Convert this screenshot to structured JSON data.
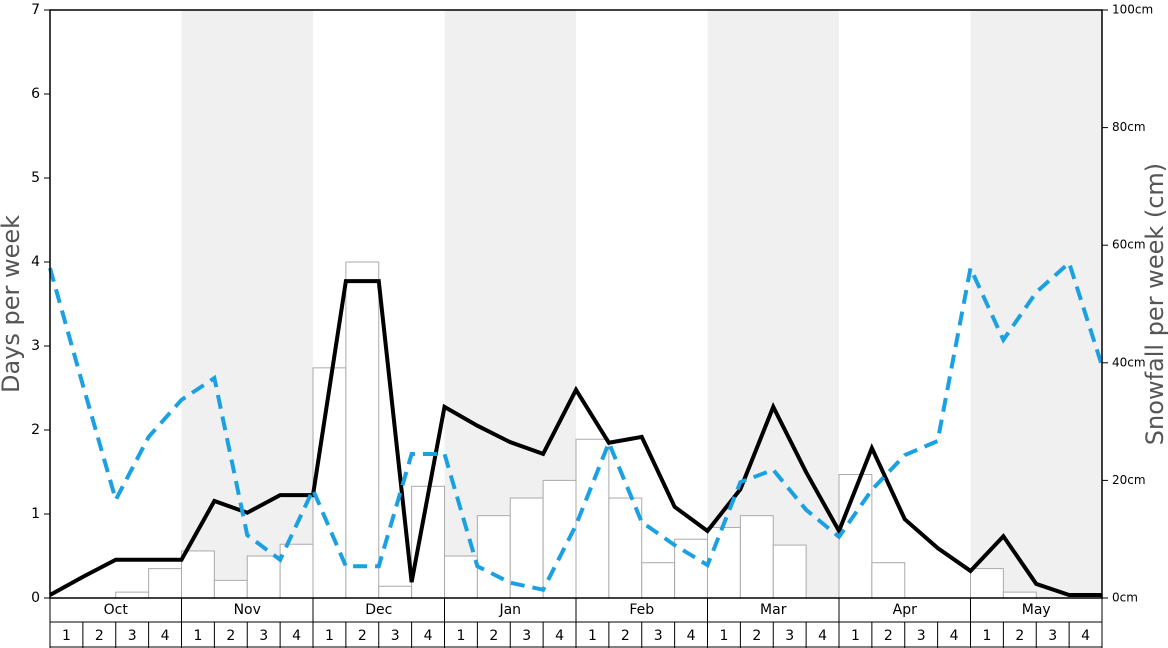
{
  "chart_data": {
    "type": "bar",
    "ylabel": "Days per week",
    "y2label": "Snowfall per week (cm)",
    "months": [
      "Oct",
      "Nov",
      "Dec",
      "Jan",
      "Feb",
      "Mar",
      "Apr",
      "May"
    ],
    "weeks": [
      "1",
      "2",
      "3",
      "4"
    ],
    "shaded_months": [
      false,
      true,
      false,
      true,
      false,
      true,
      false,
      true
    ],
    "shade_color": "#f0f0f0",
    "bar_color": "#ffffff",
    "bar_edge": "#aaaaaa",
    "values": [
      0,
      0,
      0.07,
      0.35,
      0.56,
      0.21,
      0.5,
      0.64,
      2.74,
      4.0,
      0.14,
      1.33,
      0.5,
      0.98,
      1.19,
      1.4,
      1.89,
      1.19,
      0.42,
      0.7,
      0.84,
      0.98,
      0.63,
      0,
      1.47,
      0.42,
      0,
      0,
      0.35,
      0.07,
      0,
      0
    ],
    "ylim": [
      0,
      7
    ],
    "yticks": [
      0,
      1,
      2,
      3,
      4,
      5,
      6,
      7
    ],
    "y2lim": [
      0,
      100
    ],
    "y2ticks": [
      {
        "value": 0,
        "label": "0cm"
      },
      {
        "value": 20,
        "label": "20cm"
      },
      {
        "value": 40,
        "label": "40cm"
      },
      {
        "value": 60,
        "label": "60cm"
      },
      {
        "value": 80,
        "label": "80cm"
      },
      {
        "value": 100,
        "label": "100cm"
      }
    ],
    "lines": [
      {
        "color": "#000000",
        "dashed": false,
        "axis": "y2",
        "values": [
          0.5,
          3.6,
          6.5,
          6.5,
          6.5,
          16.5,
          14.5,
          17.5,
          17.5,
          53.9,
          53.9,
          2.7,
          32.5,
          29.3,
          26.5,
          24.5,
          35.4,
          26.4,
          27.4,
          15.5,
          11.4,
          18.5,
          32.5,
          21.4,
          11.4,
          25.5,
          13.4,
          8.5,
          4.6,
          10.5,
          2.4,
          0.5,
          0.5
        ]
      },
      {
        "color": "#1ba1e2",
        "dashed": true,
        "axis": "y2",
        "values": [
          56.1,
          36.2,
          16.7,
          27.4,
          33.7,
          37.4,
          10.7,
          6.5,
          18.4,
          5.4,
          5.4,
          24.5,
          24.5,
          5.4,
          2.6,
          1.4,
          12.4,
          26.4,
          12.9,
          9.0,
          5.6,
          19.7,
          21.8,
          15.0,
          10.4,
          18.4,
          24.3,
          26.7,
          56.1,
          43.9,
          52.0,
          57.0,
          39.5
        ]
      }
    ]
  }
}
